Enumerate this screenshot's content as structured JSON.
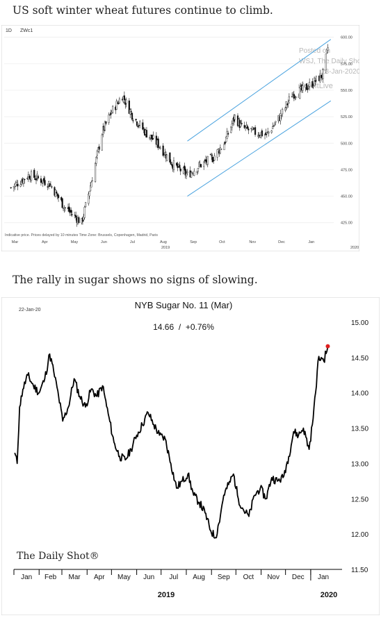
{
  "captions": {
    "wheat": "US soft winter wheat futures continue to climb.",
    "sugar": "The rally in sugar shows no signs of slowing."
  },
  "chart_data": [
    {
      "type": "candlestick",
      "ticker_interval": "1D",
      "ticker": "ZWc1",
      "footnote": "Indicative price. Prices delayed by 10 minutes   Time Zone: Brussels, Copenhagen, Madrid, Paris",
      "watermark": [
        "Posted on",
        "WSJ, The Daily Shot",
        "23-Jan-2020",
        "@SoftLive"
      ],
      "ylim": [
        415,
        605
      ],
      "y_ticks": [
        "425.00",
        "450.00",
        "475.00",
        "500.00",
        "525.00",
        "550.00",
        "575.00",
        "600.00"
      ],
      "x_month_labels": [
        "Mar",
        "Apr",
        "May",
        "Jun",
        "Jul",
        "Aug",
        "Sep",
        "Oct",
        "Nov",
        "Dec",
        "Jan"
      ],
      "x_year_labels": [
        "2019",
        "2020"
      ],
      "approx_closes": [
        {
          "date": "2019-03-01",
          "v": 458
        },
        {
          "date": "2019-03-20",
          "v": 470
        },
        {
          "date": "2019-04-10",
          "v": 462
        },
        {
          "date": "2019-04-25",
          "v": 440
        },
        {
          "date": "2019-05-13",
          "v": 425
        },
        {
          "date": "2019-05-24",
          "v": 468
        },
        {
          "date": "2019-06-03",
          "v": 510
        },
        {
          "date": "2019-06-13",
          "v": 530
        },
        {
          "date": "2019-06-24",
          "v": 545
        },
        {
          "date": "2019-07-05",
          "v": 525
        },
        {
          "date": "2019-07-18",
          "v": 510
        },
        {
          "date": "2019-08-01",
          "v": 498
        },
        {
          "date": "2019-08-15",
          "v": 480
        },
        {
          "date": "2019-08-30",
          "v": 470
        },
        {
          "date": "2019-09-10",
          "v": 478
        },
        {
          "date": "2019-09-25",
          "v": 486
        },
        {
          "date": "2019-10-07",
          "v": 500
        },
        {
          "date": "2019-10-18",
          "v": 525
        },
        {
          "date": "2019-10-25",
          "v": 515
        },
        {
          "date": "2019-11-08",
          "v": 510
        },
        {
          "date": "2019-11-20",
          "v": 508
        },
        {
          "date": "2019-12-05",
          "v": 527
        },
        {
          "date": "2019-12-16",
          "v": 546
        },
        {
          "date": "2019-12-27",
          "v": 550
        },
        {
          "date": "2020-01-08",
          "v": 558
        },
        {
          "date": "2020-01-17",
          "v": 565
        },
        {
          "date": "2020-01-22",
          "v": 590
        }
      ],
      "trend_channel": {
        "upper": [
          {
            "date": "2019-08-30",
            "v": 502
          },
          {
            "date": "2020-01-25",
            "v": 598
          }
        ],
        "lower": [
          {
            "date": "2019-08-30",
            "v": 450
          },
          {
            "date": "2020-01-25",
            "v": 540
          }
        ]
      }
    },
    {
      "type": "line",
      "title": "NYB Sugar No. 11 (Mar)",
      "subtitle": "14.66  /  +0.76%",
      "date_label": "22-Jan-20",
      "brand": "The Daily Shot®",
      "ylim": [
        11.5,
        15.0
      ],
      "y_ticks": [
        "15.00",
        "14.50",
        "14.00",
        "13.50",
        "13.00",
        "12.50",
        "12.00",
        "11.50"
      ],
      "x_month_labels": [
        "Jan",
        "Feb",
        "Mar",
        "Apr",
        "May",
        "Jun",
        "Jul",
        "Aug",
        "Sep",
        "Oct",
        "Nov",
        "Dec",
        "Jan"
      ],
      "x_year_labels": [
        "2019",
        "2020"
      ],
      "last_value": 14.66,
      "series": [
        {
          "points": [
            {
              "date": "2019-01-02",
              "v": 13.15
            },
            {
              "date": "2019-01-05",
              "v": 13.0
            },
            {
              "date": "2019-01-08",
              "v": 13.8
            },
            {
              "date": "2019-01-12",
              "v": 14.05
            },
            {
              "date": "2019-01-18",
              "v": 14.25
            },
            {
              "date": "2019-01-25",
              "v": 14.1
            },
            {
              "date": "2019-02-01",
              "v": 14.0
            },
            {
              "date": "2019-02-08",
              "v": 14.2
            },
            {
              "date": "2019-02-14",
              "v": 14.55
            },
            {
              "date": "2019-02-19",
              "v": 14.3
            },
            {
              "date": "2019-02-25",
              "v": 13.95
            },
            {
              "date": "2019-03-02",
              "v": 13.6
            },
            {
              "date": "2019-03-09",
              "v": 13.8
            },
            {
              "date": "2019-03-16",
              "v": 14.2
            },
            {
              "date": "2019-03-23",
              "v": 13.95
            },
            {
              "date": "2019-03-30",
              "v": 13.8
            },
            {
              "date": "2019-04-06",
              "v": 14.05
            },
            {
              "date": "2019-04-13",
              "v": 13.95
            },
            {
              "date": "2019-04-20",
              "v": 14.1
            },
            {
              "date": "2019-04-27",
              "v": 13.7
            },
            {
              "date": "2019-05-04",
              "v": 13.3
            },
            {
              "date": "2019-05-11",
              "v": 13.1
            },
            {
              "date": "2019-05-18",
              "v": 13.05
            },
            {
              "date": "2019-05-25",
              "v": 13.2
            },
            {
              "date": "2019-06-01",
              "v": 13.4
            },
            {
              "date": "2019-06-08",
              "v": 13.55
            },
            {
              "date": "2019-06-15",
              "v": 13.72
            },
            {
              "date": "2019-06-22",
              "v": 13.55
            },
            {
              "date": "2019-06-29",
              "v": 13.4
            },
            {
              "date": "2019-07-06",
              "v": 13.35
            },
            {
              "date": "2019-07-13",
              "v": 13.0
            },
            {
              "date": "2019-07-20",
              "v": 12.65
            },
            {
              "date": "2019-07-27",
              "v": 12.75
            },
            {
              "date": "2019-08-03",
              "v": 12.85
            },
            {
              "date": "2019-08-10",
              "v": 12.55
            },
            {
              "date": "2019-08-17",
              "v": 12.45
            },
            {
              "date": "2019-08-24",
              "v": 12.3
            },
            {
              "date": "2019-08-31",
              "v": 12.05
            },
            {
              "date": "2019-09-06",
              "v": 11.95
            },
            {
              "date": "2019-09-10",
              "v": 12.15
            },
            {
              "date": "2019-09-16",
              "v": 12.55
            },
            {
              "date": "2019-09-22",
              "v": 12.7
            },
            {
              "date": "2019-09-28",
              "v": 12.85
            },
            {
              "date": "2019-10-04",
              "v": 12.5
            },
            {
              "date": "2019-10-10",
              "v": 12.35
            },
            {
              "date": "2019-10-17",
              "v": 12.25
            },
            {
              "date": "2019-10-24",
              "v": 12.55
            },
            {
              "date": "2019-10-31",
              "v": 12.65
            },
            {
              "date": "2019-11-07",
              "v": 12.5
            },
            {
              "date": "2019-11-14",
              "v": 12.8
            },
            {
              "date": "2019-11-21",
              "v": 12.75
            },
            {
              "date": "2019-11-28",
              "v": 12.8
            },
            {
              "date": "2019-12-05",
              "v": 13.1
            },
            {
              "date": "2019-12-11",
              "v": 13.45
            },
            {
              "date": "2019-12-17",
              "v": 13.4
            },
            {
              "date": "2019-12-23",
              "v": 13.5
            },
            {
              "date": "2019-12-30",
              "v": 13.2
            },
            {
              "date": "2020-01-03",
              "v": 13.55
            },
            {
              "date": "2020-01-07",
              "v": 14.0
            },
            {
              "date": "2020-01-10",
              "v": 14.45
            },
            {
              "date": "2020-01-14",
              "v": 14.5
            },
            {
              "date": "2020-01-17",
              "v": 14.45
            },
            {
              "date": "2020-01-22",
              "v": 14.66
            }
          ]
        }
      ]
    }
  ]
}
